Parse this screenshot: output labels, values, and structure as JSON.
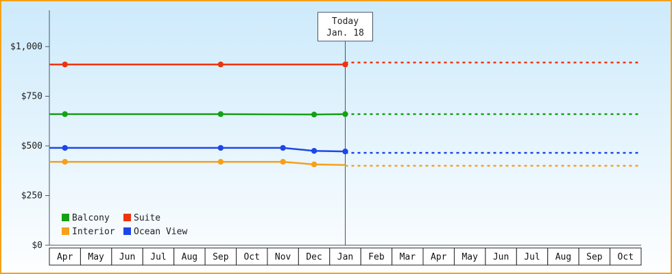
{
  "window": {
    "border_color": "#f6a01a"
  },
  "chart_data": {
    "type": "line",
    "title": "",
    "xlabel": "",
    "ylabel": "",
    "ylim": [
      0,
      1000
    ],
    "grid": false,
    "background": {
      "top": "#cdeafb",
      "bottom": "#fdfeff"
    },
    "axis_color": "#44546a",
    "x_months": [
      "Apr",
      "May",
      "Jun",
      "Jul",
      "Aug",
      "Sep",
      "Oct",
      "Nov",
      "Dec",
      "Jan",
      "Feb",
      "Mar",
      "Apr",
      "May",
      "Jun",
      "Jul",
      "Aug",
      "Sep",
      "Oct"
    ],
    "y_ticks": [
      {
        "label": "$0",
        "value": 0
      },
      {
        "label": "$250",
        "value": 250
      },
      {
        "label": "$500",
        "value": 500
      },
      {
        "label": "$750",
        "value": 750
      },
      {
        "label": "$1,000",
        "value": 1000
      }
    ],
    "today": {
      "label_line1": "Today",
      "label_line2": "Jan. 18",
      "month_index": 9
    },
    "series": [
      {
        "name": "Suite",
        "color": "#ee3311",
        "points": [
          [
            0,
            910
          ],
          [
            5,
            910
          ],
          [
            9,
            910
          ]
        ],
        "markers": [
          0,
          5,
          9
        ],
        "dashed_value": 920
      },
      {
        "name": "Balcony",
        "color": "#15a015",
        "points": [
          [
            0,
            660
          ],
          [
            5,
            660
          ],
          [
            8,
            658
          ],
          [
            9,
            660
          ]
        ],
        "markers": [
          0,
          5,
          8,
          9
        ],
        "dashed_value": 660
      },
      {
        "name": "Ocean View",
        "color": "#1d46ea",
        "points": [
          [
            0,
            490
          ],
          [
            5,
            490
          ],
          [
            7,
            490
          ],
          [
            8,
            475
          ],
          [
            9,
            472
          ]
        ],
        "markers": [
          0,
          5,
          7,
          8,
          9
        ],
        "dashed_value": 465
      },
      {
        "name": "Interior",
        "color": "#f6a01a",
        "points": [
          [
            0,
            420
          ],
          [
            5,
            420
          ],
          [
            7,
            420
          ],
          [
            8,
            407
          ],
          [
            9,
            404
          ]
        ],
        "markers": [
          0,
          5,
          7,
          8
        ],
        "dashed_value": 400
      }
    ],
    "legend": {
      "position": "bottom-left",
      "rows": [
        [
          "Balcony",
          "Suite"
        ],
        [
          "Interior",
          "Ocean View"
        ]
      ]
    }
  }
}
